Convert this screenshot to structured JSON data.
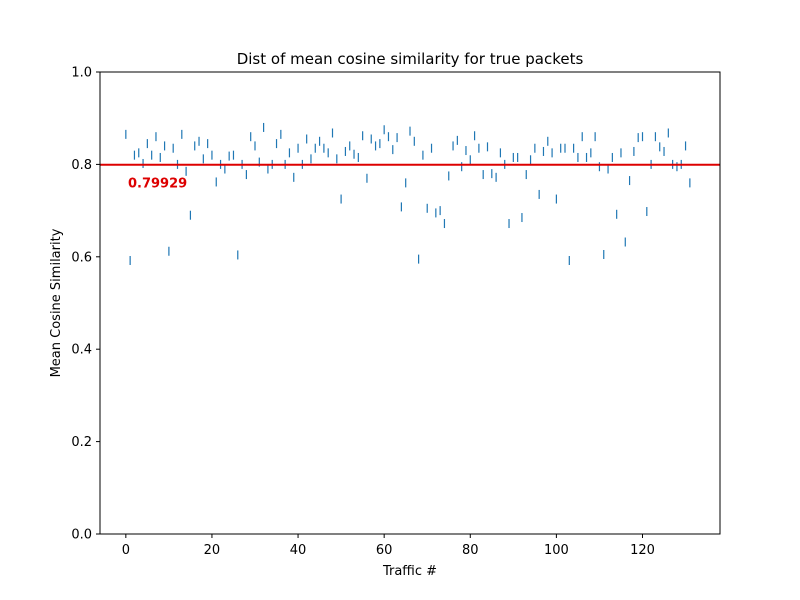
{
  "chart_data": {
    "type": "scatter",
    "title": "Dist of mean cosine similarity for true packets",
    "xlabel": "Traffic #",
    "ylabel": "Mean Cosine Similarity",
    "xlim": [
      -6,
      138
    ],
    "ylim": [
      0.0,
      1.0
    ],
    "x_ticks": [
      0,
      20,
      40,
      60,
      80,
      100,
      120
    ],
    "y_ticks": [
      0.0,
      0.2,
      0.4,
      0.6,
      0.8,
      1.0
    ],
    "x_tick_labels": [
      "0",
      "20",
      "40",
      "60",
      "80",
      "100",
      "120"
    ],
    "y_tick_labels": [
      "0.0",
      "0.2",
      "0.4",
      "0.6",
      "0.8",
      "1.0"
    ],
    "grid": false,
    "marker": "vertical-line",
    "series": [
      {
        "color": "#1f77b4",
        "x": [
          0,
          1,
          2,
          3,
          4,
          5,
          6,
          7,
          8,
          9,
          10,
          11,
          12,
          13,
          14,
          15,
          16,
          17,
          18,
          19,
          20,
          21,
          22,
          23,
          24,
          25,
          26,
          27,
          28,
          29,
          30,
          31,
          32,
          33,
          34,
          35,
          36,
          37,
          38,
          39,
          40,
          41,
          42,
          43,
          44,
          45,
          46,
          47,
          48,
          49,
          50,
          51,
          52,
          53,
          54,
          55,
          56,
          57,
          58,
          59,
          60,
          61,
          62,
          63,
          64,
          65,
          66,
          67,
          68,
          69,
          70,
          71,
          72,
          73,
          74,
          75,
          76,
          77,
          78,
          79,
          80,
          81,
          82,
          83,
          84,
          85,
          86,
          87,
          88,
          89,
          90,
          91,
          92,
          93,
          94,
          95,
          96,
          97,
          98,
          99,
          100,
          101,
          102,
          103,
          104,
          105,
          106,
          107,
          108,
          109,
          110,
          111,
          112,
          113,
          114,
          115,
          116,
          117,
          118,
          119,
          120,
          121,
          122,
          123,
          124,
          125,
          126,
          127,
          128,
          129,
          130,
          131
        ],
        "y": [
          0.865,
          0.592,
          0.82,
          0.825,
          0.802,
          0.845,
          0.82,
          0.86,
          0.815,
          0.84,
          0.612,
          0.835,
          0.8,
          0.865,
          0.785,
          0.69,
          0.84,
          0.85,
          0.812,
          0.845,
          0.82,
          0.762,
          0.8,
          0.79,
          0.818,
          0.82,
          0.604,
          0.8,
          0.778,
          0.86,
          0.84,
          0.805,
          0.88,
          0.79,
          0.8,
          0.845,
          0.865,
          0.8,
          0.825,
          0.772,
          0.835,
          0.8,
          0.855,
          0.812,
          0.835,
          0.85,
          0.835,
          0.825,
          0.868,
          0.812,
          0.725,
          0.828,
          0.84,
          0.822,
          0.815,
          0.862,
          0.77,
          0.855,
          0.84,
          0.845,
          0.875,
          0.86,
          0.832,
          0.858,
          0.708,
          0.76,
          0.872,
          0.85,
          0.595,
          0.82,
          0.705,
          0.835,
          0.695,
          0.7,
          0.672,
          0.775,
          0.84,
          0.852,
          0.795,
          0.83,
          0.81,
          0.862,
          0.835,
          0.778,
          0.838,
          0.78,
          0.772,
          0.825,
          0.8,
          0.672,
          0.815,
          0.815,
          0.685,
          0.778,
          0.81,
          0.835,
          0.735,
          0.828,
          0.85,
          0.825,
          0.725,
          0.835,
          0.835,
          0.592,
          0.835,
          0.815,
          0.86,
          0.815,
          0.825,
          0.86,
          0.795,
          0.605,
          0.79,
          0.815,
          0.692,
          0.825,
          0.632,
          0.765,
          0.828,
          0.858,
          0.86,
          0.698,
          0.8,
          0.86,
          0.838,
          0.828,
          0.868,
          0.8,
          0.795,
          0.8,
          0.84,
          0.76
        ]
      }
    ],
    "reference_line": {
      "value": 0.79929,
      "label": "0.79929",
      "color": "#dd0000"
    }
  }
}
